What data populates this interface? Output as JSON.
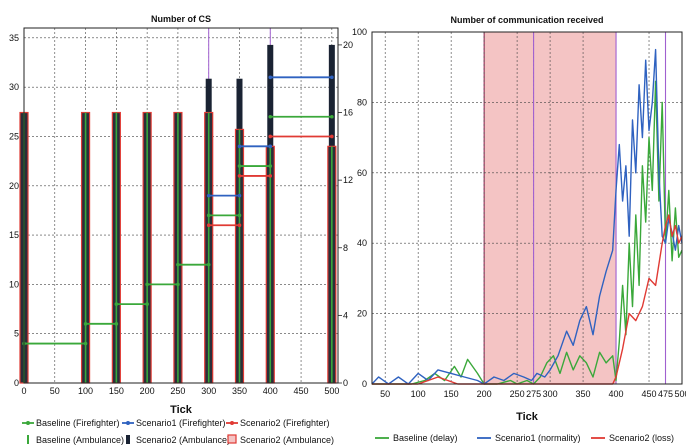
{
  "colors": {
    "baseline": "#3aa83a",
    "scenario1": "#2f62c0",
    "scenario2": "#e03a34",
    "dark": "#1a2333",
    "shade": "#f4c4c4",
    "marker_line": "#a060d0"
  },
  "chart_data": [
    {
      "type": "bar",
      "title": "Number of CS",
      "xlabel": "Tick",
      "ylabel": "",
      "xlim": [
        0,
        510
      ],
      "ylim": [
        0,
        36
      ],
      "xticks": [
        0,
        50,
        100,
        150,
        200,
        250,
        300,
        350,
        400,
        450,
        500
      ],
      "yticks": [
        0,
        5,
        10,
        15,
        20,
        25,
        30,
        35
      ],
      "y2lim": [
        0,
        21
      ],
      "y2ticks": [
        0,
        4,
        8,
        12,
        16,
        20
      ],
      "grid": true,
      "bars": {
        "x": [
          0,
          100,
          150,
          200,
          250,
          300,
          350,
          400,
          500
        ],
        "baseline_ambulance": [
          16,
          16,
          16,
          16,
          16,
          16,
          15,
          14,
          14
        ],
        "scenario2_ambulance": [
          16,
          16,
          16,
          16,
          16,
          16,
          15,
          14,
          14
        ],
        "scenario2_ambulance_total": [
          16,
          16,
          16,
          16,
          16,
          18,
          18,
          20,
          20
        ]
      },
      "step_series": [
        {
          "name": "Baseline (Firefighter)",
          "color": "baseline",
          "steps": [
            [
              0,
              100,
              4
            ],
            [
              100,
              150,
              6
            ],
            [
              150,
              200,
              8
            ],
            [
              200,
              250,
              10
            ],
            [
              250,
              300,
              12
            ],
            [
              300,
              350,
              17
            ],
            [
              350,
              400,
              22
            ],
            [
              400,
              500,
              27
            ]
          ]
        },
        {
          "name": "Scenario1 (Firefighter)",
          "color": "scenario1",
          "steps": [
            [
              300,
              350,
              19
            ],
            [
              350,
              400,
              24
            ],
            [
              400,
              500,
              31
            ]
          ]
        },
        {
          "name": "Scenario2 (Firefighter)",
          "color": "scenario2",
          "steps": [
            [
              300,
              350,
              16
            ],
            [
              350,
              400,
              21
            ],
            [
              400,
              500,
              25
            ]
          ]
        }
      ],
      "vlines": [
        300,
        400
      ],
      "legend": [
        {
          "label": "Baseline (Firefighter)",
          "kind": "line-marker",
          "color": "baseline"
        },
        {
          "label": "Scenario1 (Firefighter)",
          "kind": "line-marker",
          "color": "scenario1"
        },
        {
          "label": "Scenario2 (Firefighter)",
          "kind": "line-marker",
          "color": "scenario2"
        },
        {
          "label": "Baseline (Ambulance)",
          "kind": "bar-thin",
          "color": "baseline"
        },
        {
          "label": "Scenario2 (Ambulance)",
          "kind": "bar-dark",
          "color": "dark"
        },
        {
          "label": "Scenario2 (Ambulance)",
          "kind": "bar-box",
          "color": "scenario2"
        }
      ]
    },
    {
      "type": "line",
      "title": "Number of communication received",
      "xlabel": "Tick",
      "ylabel": "",
      "xlim": [
        30,
        500
      ],
      "ylim": [
        0,
        100
      ],
      "xticks": [
        50,
        100,
        150,
        200,
        250,
        275,
        300,
        350,
        400,
        450,
        475,
        500
      ],
      "yticks": [
        0,
        20,
        40,
        60,
        80,
        100
      ],
      "grid": true,
      "shaded_region": [
        200,
        400
      ],
      "vlines": [
        275,
        400,
        475
      ],
      "series": [
        {
          "name": "Baseline (delay)",
          "color": "baseline",
          "x": [
            30,
            60,
            90,
            110,
            125,
            140,
            155,
            165,
            175,
            190,
            200,
            220,
            240,
            250,
            265,
            275,
            285,
            295,
            305,
            315,
            325,
            335,
            345,
            355,
            365,
            375,
            385,
            395,
            400,
            405,
            410,
            415,
            420,
            425,
            430,
            435,
            440,
            445,
            450,
            455,
            460,
            465,
            470,
            475,
            480,
            485,
            490,
            495,
            500
          ],
          "y": [
            0,
            0,
            0,
            1,
            3,
            1,
            5,
            2,
            7,
            3,
            0,
            0,
            1,
            0,
            1,
            0,
            2,
            6,
            8,
            3,
            9,
            4,
            8,
            6,
            2,
            9,
            6,
            8,
            1,
            12,
            28,
            14,
            40,
            22,
            48,
            28,
            62,
            46,
            70,
            55,
            86,
            52,
            80,
            40,
            55,
            35,
            50,
            36,
            38
          ]
        },
        {
          "name": "Scenario1 (normality)",
          "color": "scenario1",
          "x": [
            30,
            40,
            55,
            70,
            85,
            100,
            115,
            130,
            150,
            170,
            190,
            200,
            215,
            230,
            245,
            260,
            272,
            280,
            292,
            300,
            312,
            325,
            335,
            345,
            355,
            365,
            375,
            385,
            395,
            400,
            405,
            410,
            415,
            420,
            425,
            430,
            435,
            440,
            445,
            450,
            455,
            460,
            465,
            470,
            475,
            480,
            485,
            490,
            495,
            500
          ],
          "y": [
            0,
            2,
            0,
            2,
            0,
            3,
            1,
            4,
            3,
            2,
            1,
            0,
            2,
            1,
            3,
            2,
            1,
            3,
            2,
            4,
            8,
            15,
            11,
            18,
            22,
            14,
            25,
            32,
            38,
            55,
            68,
            52,
            62,
            42,
            75,
            60,
            85,
            70,
            92,
            72,
            80,
            95,
            60,
            42,
            40,
            47,
            43,
            38,
            45,
            40
          ]
        },
        {
          "name": "Scenario2 (loss)",
          "color": "scenario2",
          "x": [
            30,
            100,
            130,
            160,
            200,
            250,
            300,
            350,
            395,
            400,
            410,
            420,
            430,
            440,
            450,
            460,
            470,
            475,
            480,
            485,
            490,
            495,
            500
          ],
          "y": [
            0,
            0,
            2,
            0,
            0,
            0,
            0,
            0,
            0,
            2,
            10,
            20,
            18,
            22,
            30,
            28,
            40,
            45,
            48,
            42,
            45,
            40,
            42
          ]
        }
      ],
      "legend": [
        {
          "label": "Baseline (delay)",
          "color": "baseline"
        },
        {
          "label": "Scenario1 (normality)",
          "color": "scenario1"
        },
        {
          "label": "Scenario2 (loss)",
          "color": "scenario2"
        }
      ]
    }
  ]
}
